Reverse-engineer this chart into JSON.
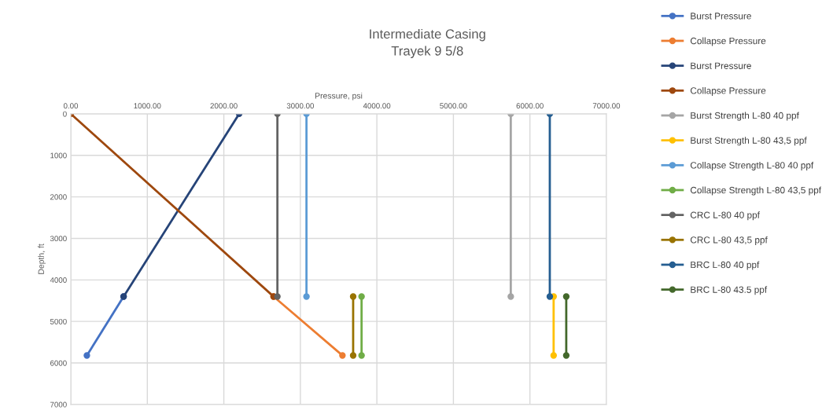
{
  "chart_data": {
    "type": "line",
    "title": "Intermediate Casing\nTrayek 9 5/8",
    "xlabel": "Pressure, psi",
    "ylabel": "Depth, ft",
    "xlim": [
      0,
      7000
    ],
    "ylim": [
      7000,
      0
    ],
    "xticks": [
      {
        "value": 0,
        "label": "0.00"
      },
      {
        "value": 1000,
        "label": "1000.00"
      },
      {
        "value": 2000,
        "label": "2000.00"
      },
      {
        "value": 3000,
        "label": "3000.00"
      },
      {
        "value": 4000,
        "label": "4000.00"
      },
      {
        "value": 5000,
        "label": "5000.00"
      },
      {
        "value": 6000,
        "label": "6000.00"
      },
      {
        "value": 7000,
        "label": "7000.00"
      }
    ],
    "yticks": [
      0,
      1000,
      2000,
      3000,
      4000,
      5000,
      6000,
      7000
    ],
    "grid": true,
    "legend": "right",
    "marker": "circle",
    "line_style": "solid",
    "series": [
      {
        "name": "Burst Pressure",
        "color": "#4472c4",
        "x": [
          690,
          210
        ],
        "values": [
          4400,
          5820
        ]
      },
      {
        "name": "Collapse Pressure",
        "color": "#ed7d31",
        "x": [
          2650,
          3550
        ],
        "values": [
          4400,
          5820
        ]
      },
      {
        "name": "Burst Pressure",
        "color": "#264478",
        "x": [
          2200,
          690
        ],
        "values": [
          0,
          4400
        ]
      },
      {
        "name": "Collapse Pressure",
        "color": "#9e480e",
        "x": [
          0,
          2650
        ],
        "values": [
          0,
          4400
        ]
      },
      {
        "name": "Burst Strength L-80 40 ppf",
        "color": "#a5a5a5",
        "x": [
          5750,
          5750
        ],
        "values": [
          0,
          4400
        ]
      },
      {
        "name": "Burst Strength L-80 43,5 ppf",
        "color": "#ffc000",
        "x": [
          6310,
          6310
        ],
        "values": [
          4400,
          5820
        ]
      },
      {
        "name": "Collapse Strength L-80 40 ppf",
        "color": "#5b9bd5",
        "x": [
          3080,
          3080
        ],
        "values": [
          0,
          4400
        ]
      },
      {
        "name": "Collapse Strength L-80 43,5 ppf",
        "color": "#70ad47",
        "x": [
          3800,
          3800
        ],
        "values": [
          4400,
          5820
        ]
      },
      {
        "name": "CRC L-80 40 ppf",
        "color": "#636363",
        "x": [
          2700,
          2700
        ],
        "values": [
          0,
          4400
        ]
      },
      {
        "name": "CRC L-80 43,5 ppf",
        "color": "#997300",
        "x": [
          3690,
          3690
        ],
        "values": [
          4400,
          5820
        ]
      },
      {
        "name": "BRC L-80 40 ppf",
        "color": "#255e91",
        "x": [
          6260,
          6260
        ],
        "values": [
          0,
          4400
        ]
      },
      {
        "name": "BRC L-80 43.5 ppf",
        "color": "#43682b",
        "x": [
          6475,
          6475
        ],
        "values": [
          4400,
          5820
        ]
      }
    ]
  }
}
